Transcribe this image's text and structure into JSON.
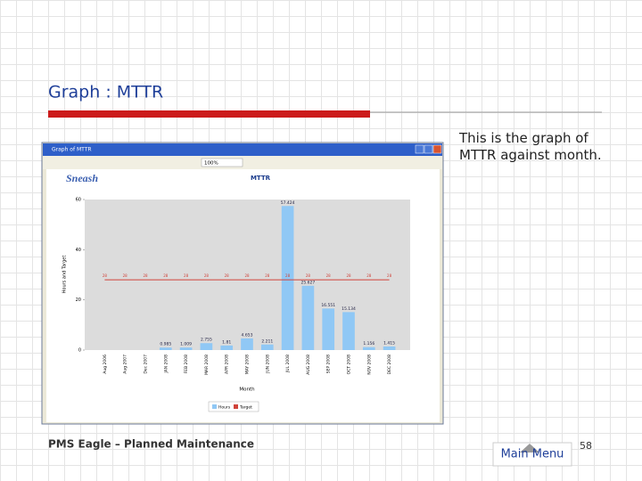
{
  "slide": {
    "title": "Graph : MTTR",
    "description": "This is the graph of MTTR against month.",
    "footer": "PMS Eagle – Planned Maintenance",
    "button": "Main Menu",
    "page_number": 58
  },
  "window": {
    "title": "Graph of MTTR",
    "zoom": "100%"
  },
  "chart_data": {
    "type": "bar",
    "brand": "Sneash",
    "title": "MTTR",
    "y_label": "Hours and Target",
    "x_label": "Month",
    "categories": [
      "Aug 2006",
      "Aug 2007",
      "Dec 2007",
      "JAN 2008",
      "FEB 2008",
      "MAR 2008",
      "APR 2008",
      "MAY 2008",
      "JUN 2008",
      "JUL 2008",
      "AUG 2008",
      "SEP 2008",
      "OCT 2008",
      "NOV 2008",
      "DEC 2008"
    ],
    "series": [
      {
        "name": "Hours",
        "type": "bar",
        "color": "#90c8f5",
        "values": [
          null,
          null,
          null,
          0.985,
          1.009,
          2.755,
          1.81,
          4.653,
          2.211,
          57.424,
          25.627,
          16.551,
          15.134,
          1.156,
          1.415
        ]
      },
      {
        "name": "Target",
        "type": "line",
        "color": "#d0433a",
        "values": [
          28,
          28,
          28,
          28,
          28,
          28,
          28,
          28,
          28,
          28,
          28,
          28,
          28,
          28,
          28
        ]
      }
    ],
    "ylim": [
      0,
      60
    ],
    "yticks": [
      0,
      20,
      40,
      60
    ],
    "grid": false
  }
}
